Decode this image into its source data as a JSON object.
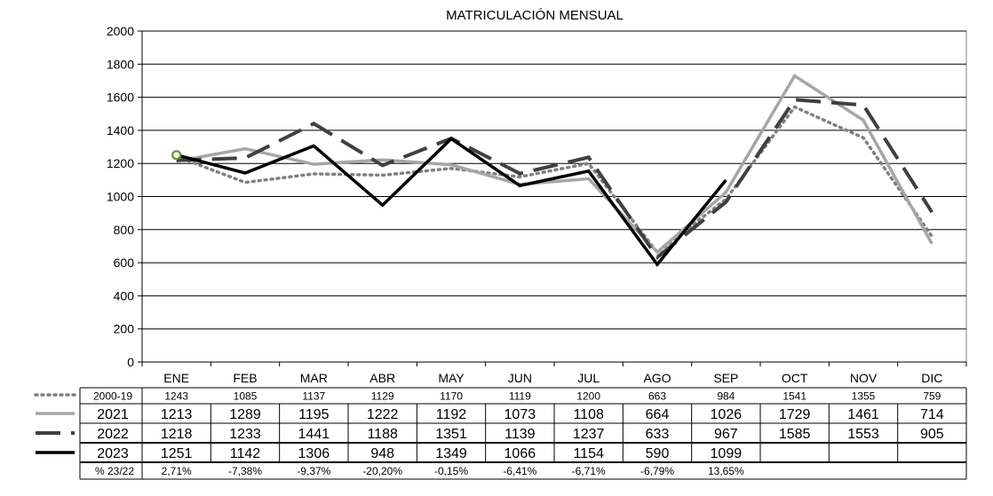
{
  "chart_data": {
    "type": "line",
    "title": "MATRICULACIÓN MENSUAL",
    "categories": [
      "ENE",
      "FEB",
      "MAR",
      "ABR",
      "MAY",
      "JUN",
      "JUL",
      "AGO",
      "SEP",
      "OCT",
      "NOV",
      "DIC"
    ],
    "ylim": [
      0,
      2000
    ],
    "yticks": [
      "0",
      "200",
      "400",
      "600",
      "800",
      "1000",
      "1200",
      "1400",
      "1600",
      "1800",
      "2000"
    ],
    "grid": true,
    "legend": "table-below",
    "series": [
      {
        "name": "2000-19",
        "style": "dotted",
        "color": "#808080",
        "values": [
          1243,
          1085,
          1137,
          1129,
          1170,
          1119,
          1200,
          663,
          984,
          1541,
          1355,
          759
        ],
        "labels": [
          "1243",
          "1085",
          "1137",
          "1129",
          "1170",
          "1119",
          "1200",
          "663",
          "984",
          "1541",
          "1355",
          "759"
        ]
      },
      {
        "name": "2021",
        "style": "solid",
        "color": "#a6a6a6",
        "values": [
          1213,
          1289,
          1195,
          1222,
          1192,
          1073,
          1108,
          664,
          1026,
          1729,
          1461,
          714
        ],
        "labels": [
          "1213",
          "1289",
          "1195",
          "1222",
          "1192",
          "1073",
          "1108",
          "664",
          "1026",
          "1729",
          "1461",
          "714"
        ]
      },
      {
        "name": "2022",
        "style": "dashed",
        "color": "#404040",
        "values": [
          1218,
          1233,
          1441,
          1188,
          1351,
          1139,
          1237,
          633,
          967,
          1585,
          1553,
          905
        ],
        "labels": [
          "1218",
          "1233",
          "1441",
          "1188",
          "1351",
          "1139",
          "1237",
          "633",
          "967",
          "1585",
          "1553",
          "905"
        ]
      },
      {
        "name": "2023",
        "style": "solid",
        "color": "#000000",
        "values": [
          1251,
          1142,
          1306,
          948,
          1349,
          1066,
          1154,
          590,
          1099,
          null,
          null,
          null
        ],
        "labels": [
          "1251",
          "1142",
          "1306",
          "948",
          "1349",
          "1066",
          "1154",
          "590",
          "1099",
          "",
          "",
          ""
        ]
      }
    ],
    "pct_row": {
      "name": "% 23/22",
      "values": [
        "2,71%",
        "-7,38%",
        "-9,37%",
        "-20,20%",
        "-0,15%",
        "-6,41%",
        "-6,71%",
        "-6,79%",
        "13,65%",
        "",
        "",
        ""
      ]
    }
  }
}
